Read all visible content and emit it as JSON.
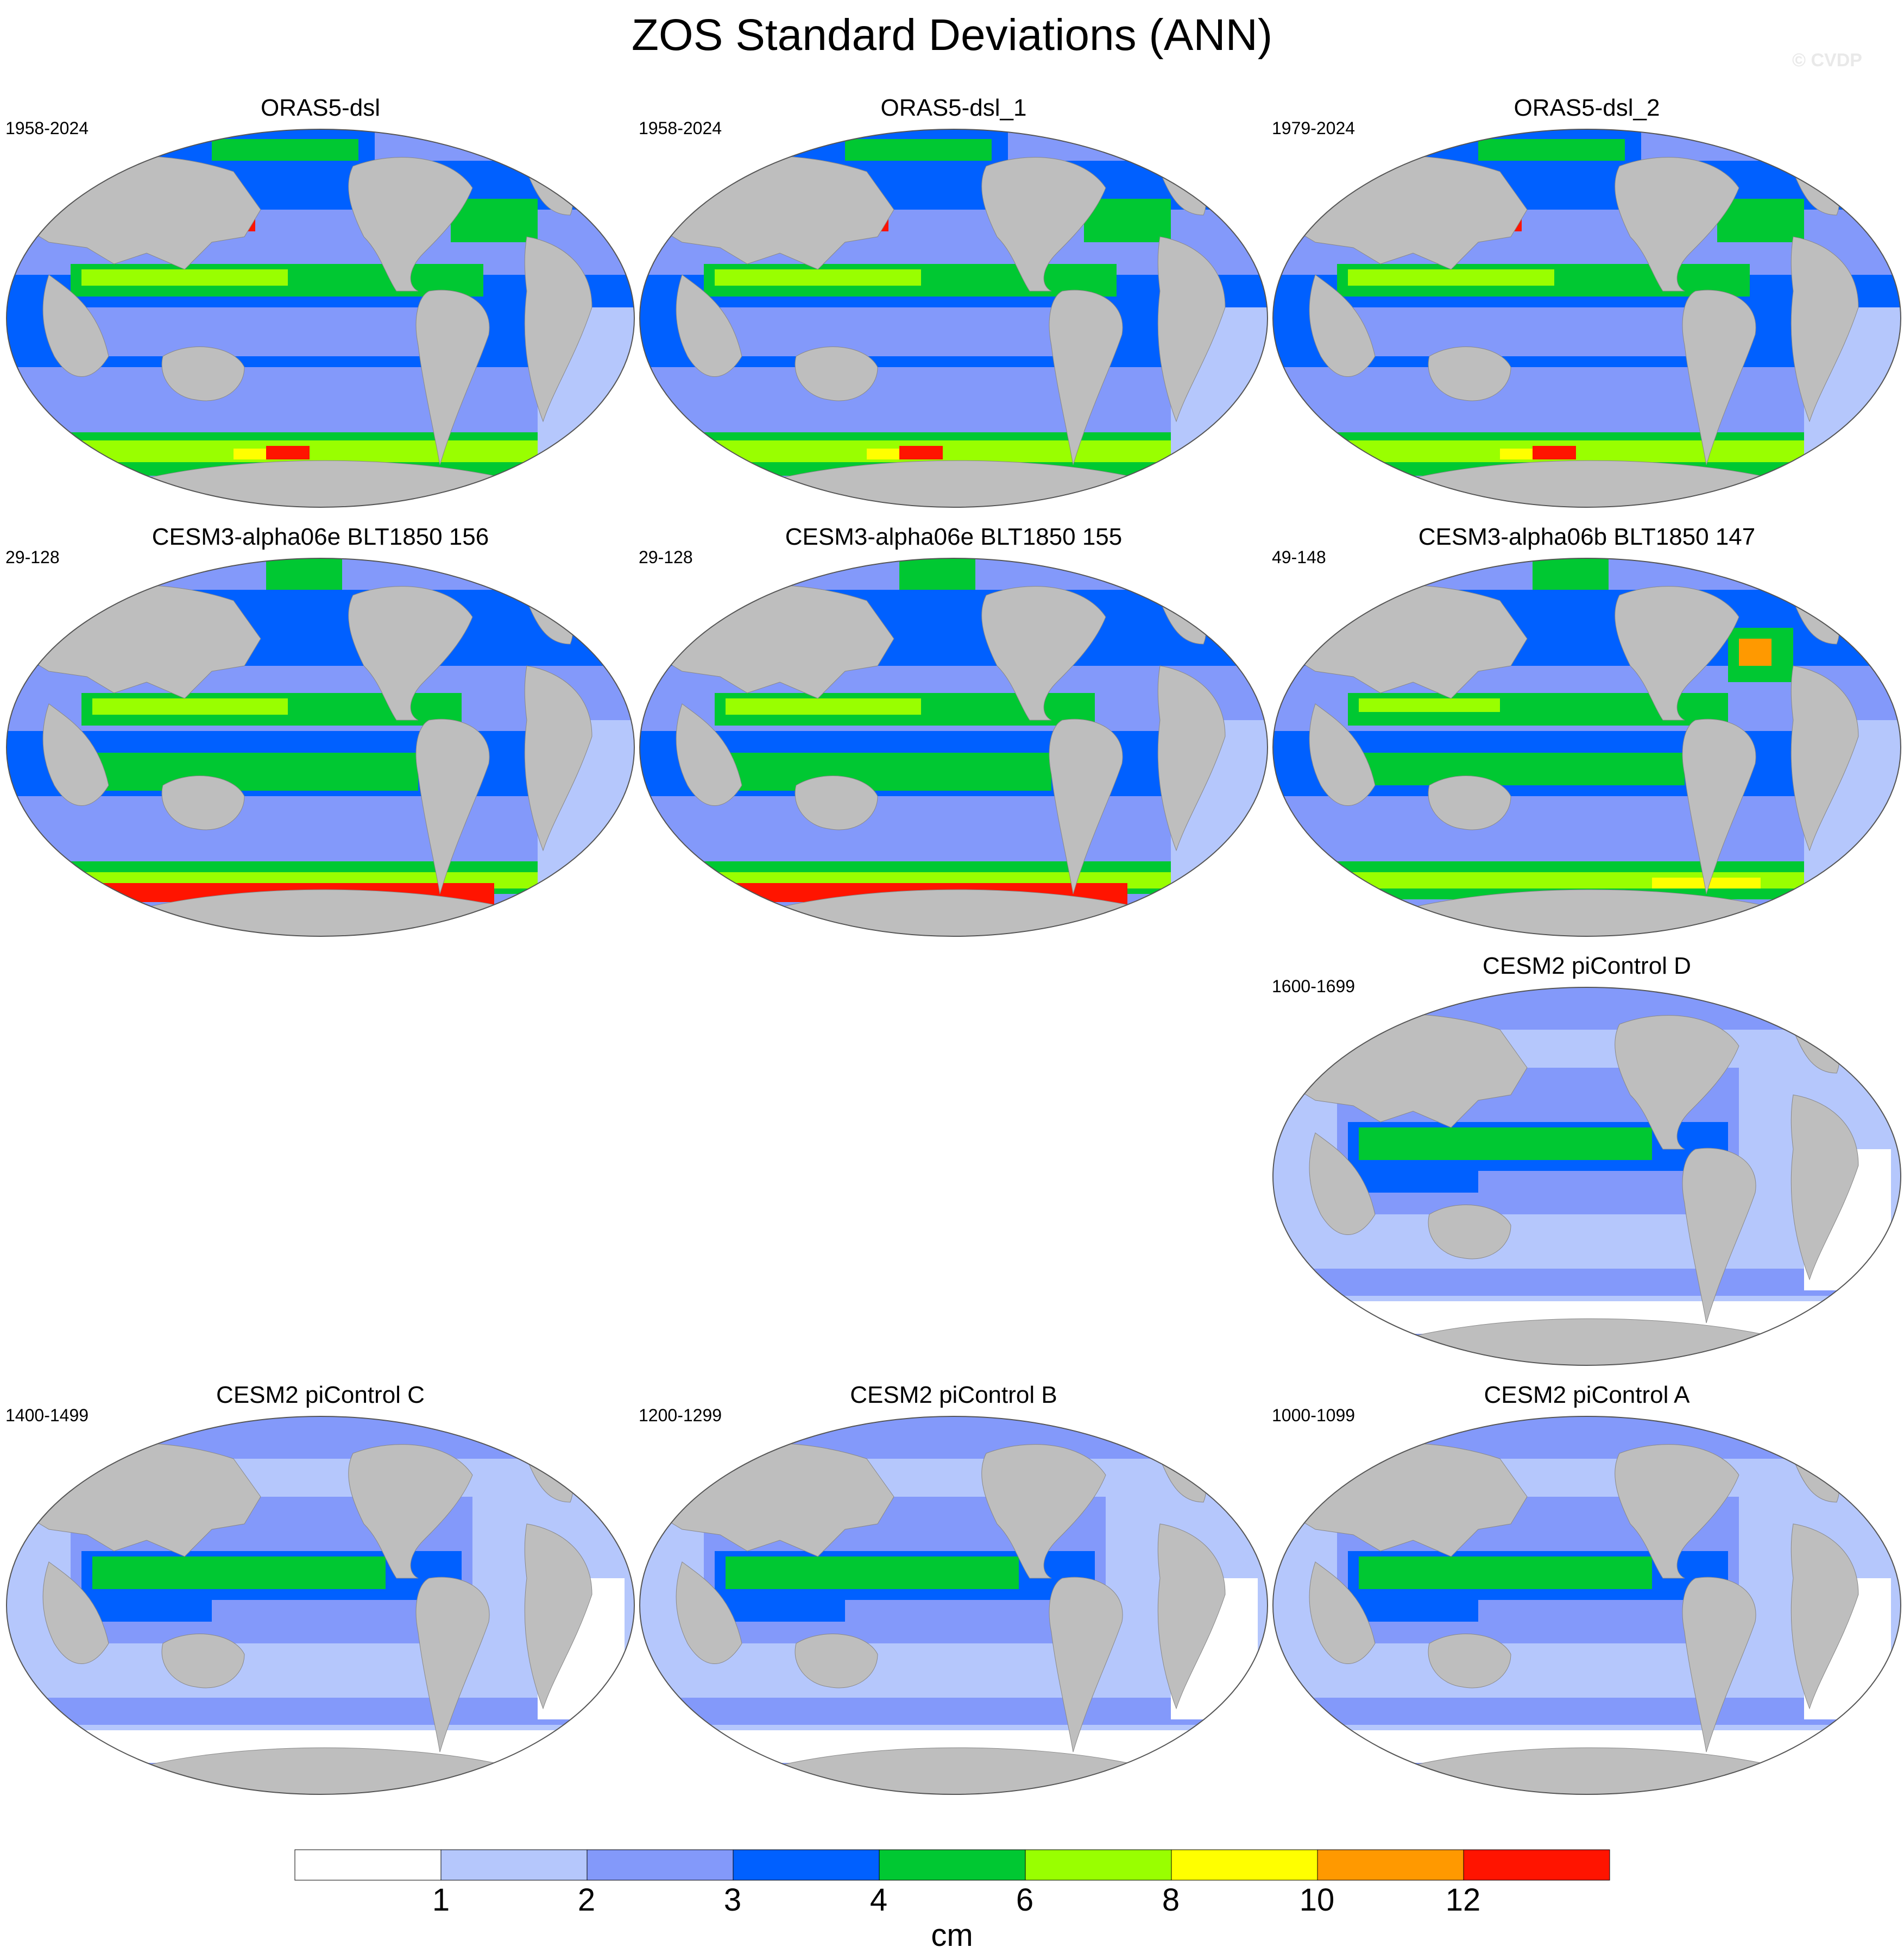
{
  "title": "ZOS Standard Deviations (ANN)",
  "watermark": "© CVDP",
  "colors": {
    "land": "#bebebe",
    "levels": [
      "#ffffff",
      "#b5c7fc",
      "#8399fa",
      "#0060ff",
      "#00c832",
      "#99ff00",
      "#ffff00",
      "#ff9900",
      "#ff1400"
    ]
  },
  "panels": [
    {
      "id": "p1",
      "title": "ORAS5-dsl",
      "years": "1958-2024",
      "pattern": "oras"
    },
    {
      "id": "p2",
      "title": "ORAS5-dsl_1",
      "years": "1958-2024",
      "pattern": "oras"
    },
    {
      "id": "p3",
      "title": "ORAS5-dsl_2",
      "years": "1979-2024",
      "pattern": "oras"
    },
    {
      "id": "p4",
      "title": "CESM3-alpha06e BLT1850 156",
      "years": "29-128",
      "pattern": "cesm3e"
    },
    {
      "id": "p5",
      "title": "CESM3-alpha06e BLT1850 155",
      "years": "29-128",
      "pattern": "cesm3e"
    },
    {
      "id": "p6",
      "title": "CESM3-alpha06b BLT1850 147",
      "years": "49-148",
      "pattern": "cesm3b"
    },
    {
      "id": "p7",
      "title": "CESM2 piControl D",
      "years": "1600-1699",
      "pattern": "cesm2"
    },
    {
      "id": "p8",
      "title": "CESM2 piControl C",
      "years": "1400-1499",
      "pattern": "cesm2"
    },
    {
      "id": "p9",
      "title": "CESM2 piControl B",
      "years": "1200-1299",
      "pattern": "cesm2"
    },
    {
      "id": "p10",
      "title": "CESM2 piControl A",
      "years": "1000-1099",
      "pattern": "cesm2"
    }
  ],
  "colorbar": {
    "labels": [
      "1",
      "2",
      "3",
      "4",
      "6",
      "8",
      "10",
      "12"
    ],
    "units": "cm"
  }
}
